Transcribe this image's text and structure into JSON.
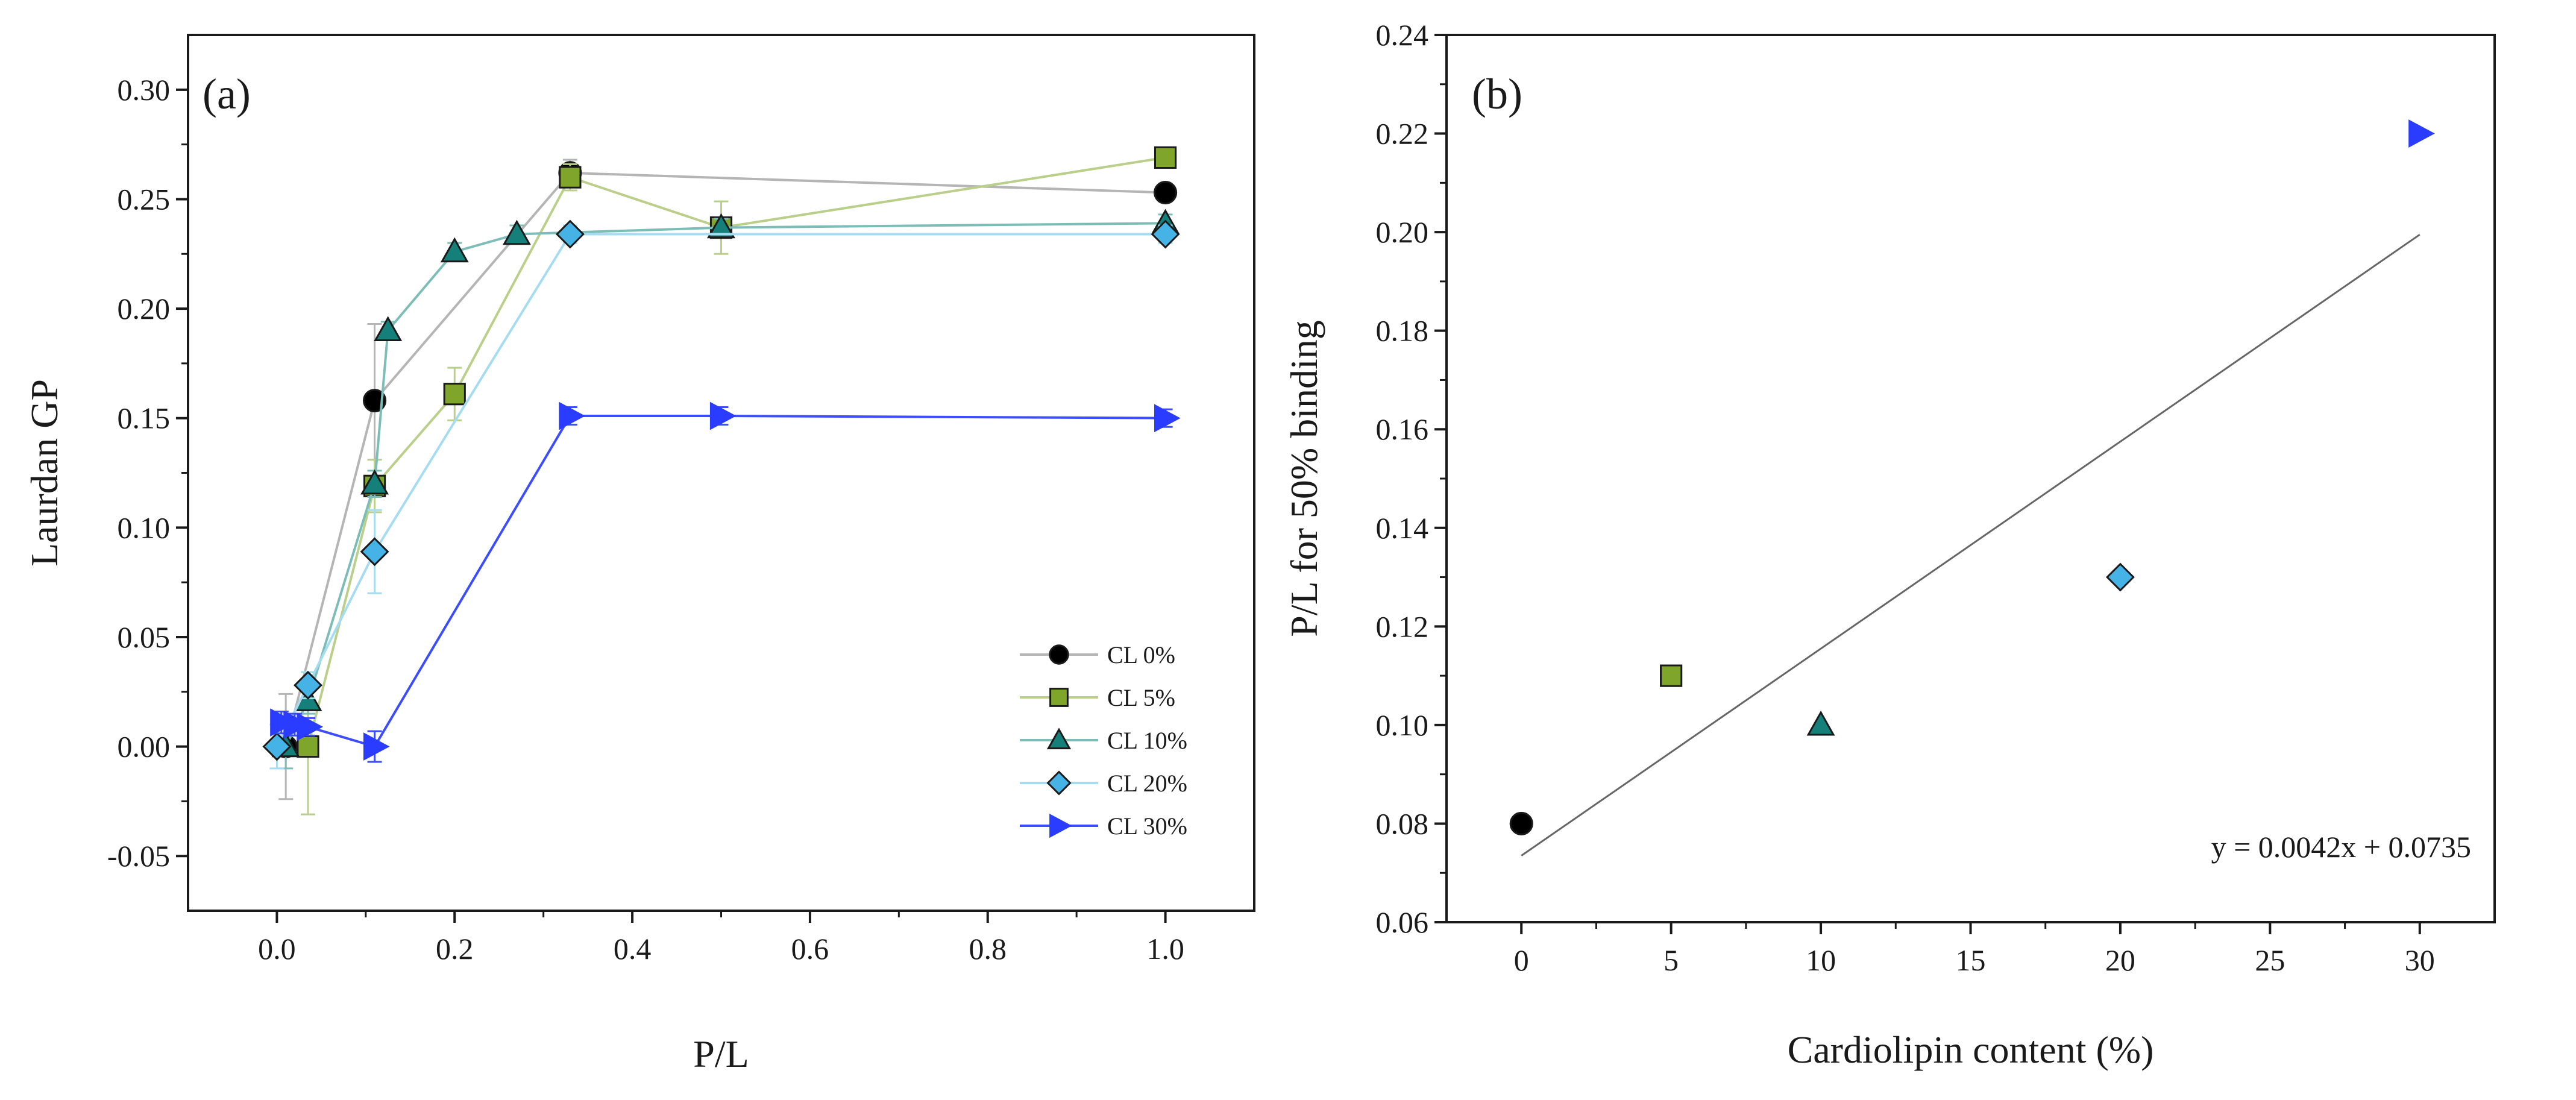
{
  "chart_data": [
    {
      "panel": "(a)",
      "type": "line",
      "xlabel": "P/L",
      "ylabel": "Laurdan GP",
      "xlim": [
        -0.1,
        1.1
      ],
      "ylim": [
        -0.075,
        0.325
      ],
      "xticks": [
        0.0,
        0.2,
        0.4,
        0.6,
        0.8,
        1.0
      ],
      "xtick_labels": [
        "0.0",
        "0.2",
        "0.4",
        "0.6",
        "0.8",
        "1.0"
      ],
      "yticks": [
        -0.05,
        0.0,
        0.05,
        0.1,
        0.15,
        0.2,
        0.25,
        0.3
      ],
      "ytick_labels": [
        "-0.05",
        "0.00",
        "0.05",
        "0.10",
        "0.15",
        "0.20",
        "0.25",
        "0.30"
      ],
      "legend_position": "bottom-right",
      "series": [
        {
          "name": "CL 0%",
          "marker": "circle",
          "fill": "#000000",
          "line_color": "#b5b5b5",
          "x": [
            0.01,
            0.11,
            0.33,
            1.0
          ],
          "y": [
            0.0,
            0.158,
            0.262,
            0.253
          ],
          "err": [
            0.024,
            0.035,
            0.006,
            0.004
          ]
        },
        {
          "name": "CL 5%",
          "marker": "square",
          "fill": "#7fa62a",
          "line_color": "#b9cf8a",
          "x": [
            0.035,
            0.11,
            0.2,
            0.33,
            0.5,
            1.0
          ],
          "y": [
            0.0,
            0.119,
            0.161,
            0.26,
            0.237,
            0.269
          ],
          "err": [
            0.031,
            0.012,
            0.012,
            0.006,
            0.012,
            0.004
          ]
        },
        {
          "name": "CL 10%",
          "marker": "triangle-up",
          "fill": "#157f7a",
          "line_color": "#7dbdb8",
          "x": [
            0.01,
            0.035,
            0.11,
            0.125,
            0.2,
            0.27,
            0.5,
            1.0
          ],
          "y": [
            0.0,
            0.021,
            0.12,
            0.19,
            0.226,
            0.234,
            0.237,
            0.239
          ],
          "err": [
            0.01,
            0.006,
            0.006,
            0.004,
            0.004,
            0.004,
            0.004,
            0.004
          ]
        },
        {
          "name": "CL 20%",
          "marker": "diamond",
          "fill": "#45b3e5",
          "line_color": "#a6dcf2",
          "x": [
            0.0,
            0.035,
            0.11,
            0.33,
            1.0
          ],
          "y": [
            0.0,
            0.028,
            0.089,
            0.234,
            0.234
          ],
          "err": [
            0.01,
            0.006,
            0.019,
            0.004,
            0.004
          ]
        },
        {
          "name": "CL 30%",
          "marker": "triangle-right",
          "fill": "#2a3cff",
          "line_color": "#3c4cff",
          "x": [
            0.005,
            0.02,
            0.035,
            0.11,
            0.33,
            0.5,
            1.0
          ],
          "y": [
            0.011,
            0.01,
            0.009,
            0.0,
            0.151,
            0.151,
            0.15
          ],
          "err": [
            0.005,
            0.005,
            0.004,
            0.007,
            0.004,
            0.004,
            0.004
          ]
        }
      ]
    },
    {
      "panel": "(b)",
      "type": "scatter",
      "xlabel": "Cardiolipin content (%)",
      "ylabel": "P/L for 50% binding",
      "xlim": [
        -2.5,
        32.5
      ],
      "ylim": [
        0.06,
        0.24
      ],
      "xticks": [
        0,
        5,
        10,
        15,
        20,
        25,
        30
      ],
      "xtick_labels": [
        "0",
        "5",
        "10",
        "15",
        "20",
        "25",
        "30"
      ],
      "yticks": [
        0.06,
        0.08,
        0.1,
        0.12,
        0.14,
        0.16,
        0.18,
        0.2,
        0.22,
        0.24
      ],
      "ytick_labels": [
        "0.06",
        "0.08",
        "0.10",
        "0.12",
        "0.14",
        "0.16",
        "0.18",
        "0.20",
        "0.22",
        "0.24"
      ],
      "points": [
        {
          "x": 0,
          "y": 0.08,
          "marker": "circle",
          "fill": "#000000"
        },
        {
          "x": 5,
          "y": 0.11,
          "marker": "square",
          "fill": "#7fa62a"
        },
        {
          "x": 10,
          "y": 0.1,
          "marker": "triangle-up",
          "fill": "#157f7a"
        },
        {
          "x": 20,
          "y": 0.13,
          "marker": "diamond",
          "fill": "#45b3e5"
        },
        {
          "x": 30,
          "y": 0.22,
          "marker": "triangle-right",
          "fill": "#2a3cff"
        }
      ],
      "fit": {
        "slope": 0.0042,
        "intercept": 0.0735,
        "x_range": [
          0,
          30
        ],
        "line_color": "#666666"
      },
      "equation": "y = 0.0042x + 0.0735"
    }
  ]
}
